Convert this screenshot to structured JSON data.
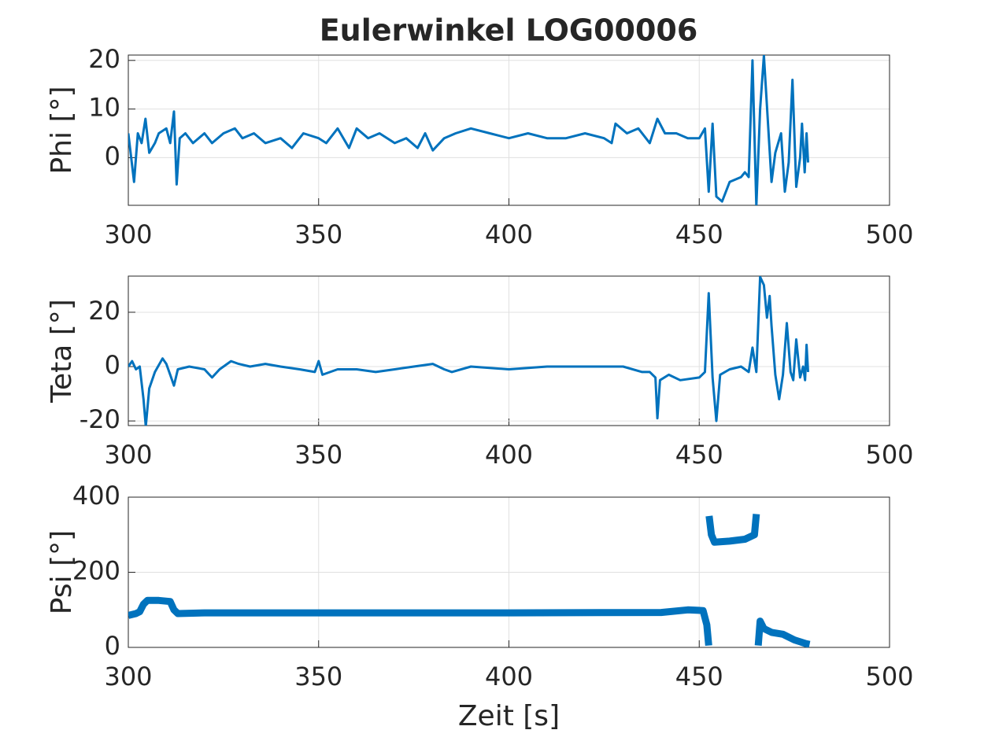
{
  "chart_data": [
    {
      "type": "line",
      "title": "Eulerwinkel LOG00006",
      "ylabel": "Phi [°]",
      "color": "#0072bd",
      "grid": true,
      "xlim": [
        300,
        500
      ],
      "xticks": [
        300,
        350,
        400,
        450,
        500
      ],
      "ylim": [
        -9.8,
        21.1
      ],
      "yticks": [
        0,
        10,
        20
      ],
      "x": [
        300,
        301.5,
        302.5,
        303.5,
        304.5,
        305.5,
        307,
        308,
        310,
        311,
        312,
        312.7,
        313.5,
        315,
        317,
        320,
        322,
        325,
        328,
        330,
        333,
        336,
        340,
        343,
        346,
        350,
        352,
        355,
        358,
        360,
        363,
        366,
        370,
        373,
        376,
        378,
        380,
        383,
        386,
        390,
        395,
        400,
        405,
        410,
        415,
        420,
        425,
        427,
        428,
        431,
        434,
        437,
        439,
        441,
        444,
        447,
        450,
        451.5,
        452.5,
        453.5,
        454.5,
        456,
        458,
        461,
        462,
        463,
        464,
        465,
        466,
        467,
        469,
        470,
        471.5,
        472.5,
        473.5,
        474.5,
        475.5,
        476.5,
        477,
        477.7,
        478.2,
        478.6
      ],
      "values": [
        5,
        -5,
        5,
        3,
        8,
        1,
        3,
        5,
        6,
        3,
        9.5,
        -5.5,
        4,
        5,
        3,
        5,
        3,
        5,
        6,
        4,
        5,
        3,
        4,
        2,
        5,
        4,
        3,
        6,
        2,
        6,
        4,
        5,
        3,
        4,
        2,
        5,
        1.5,
        4,
        5,
        6,
        5,
        4,
        5,
        4,
        4,
        5,
        4,
        3,
        7,
        5,
        6,
        3,
        8,
        5,
        5,
        4,
        4,
        6,
        -7,
        7,
        -8,
        -9,
        -5,
        -4,
        -3,
        -4,
        20,
        -10,
        10,
        21,
        -5,
        1,
        5,
        -7,
        -1,
        16,
        -6,
        0,
        7,
        -3,
        5,
        -1
      ]
    },
    {
      "type": "line",
      "ylabel": "Teta [°]",
      "color": "#0072bd",
      "grid": true,
      "xlim": [
        300,
        500
      ],
      "xticks": [
        300,
        350,
        400,
        450,
        500
      ],
      "ylim": [
        -21.7,
        33.3
      ],
      "yticks": [
        -20,
        0,
        20
      ],
      "x": [
        300,
        301,
        302,
        303,
        304,
        304.6,
        305.5,
        307,
        309,
        310,
        311,
        312,
        313,
        316,
        320,
        322,
        324,
        327,
        329,
        332,
        336,
        340,
        345,
        349,
        350,
        351,
        355,
        360,
        365,
        370,
        375,
        380,
        383,
        385,
        390,
        400,
        410,
        420,
        430,
        435,
        437,
        438.5,
        439,
        439.7,
        442,
        445,
        450,
        451.5,
        452.5,
        453.5,
        454.5,
        455.5,
        458,
        461,
        463,
        464,
        465,
        466,
        467,
        467.8,
        468.5,
        469,
        470,
        471,
        472,
        473,
        474,
        474.7,
        475.5,
        476.5,
        477.3,
        477.8,
        478.2,
        478.6
      ],
      "values": [
        0,
        2,
        -1,
        0,
        -12,
        -22,
        -8,
        -2,
        3,
        1,
        -3,
        -7,
        -1,
        0,
        -1,
        -4,
        -1,
        2,
        1,
        0,
        1,
        0,
        -1,
        -2,
        2,
        -3,
        -1,
        -1,
        -2,
        -1,
        0,
        1,
        -1,
        -2,
        0,
        -1,
        0,
        0,
        0,
        -2,
        -2,
        -4,
        -19,
        -5,
        -3,
        -5,
        -4,
        -2,
        27,
        -4,
        -20,
        -3,
        -1,
        0,
        -2,
        7,
        -2,
        33,
        30,
        18,
        26,
        15,
        -3,
        -12,
        -3,
        16,
        -2,
        -5,
        10,
        -4,
        0,
        -5,
        8,
        -2
      ]
    },
    {
      "type": "line",
      "ylabel": "Psi [°]",
      "xlabel": "Zeit [s]",
      "color": "#0072bd",
      "grid": true,
      "xlim": [
        300,
        500
      ],
      "xticks": [
        300,
        350,
        400,
        450,
        500
      ],
      "ylim": [
        0,
        400
      ],
      "yticks": [
        0,
        200,
        400
      ],
      "x": [
        300,
        302,
        303,
        304,
        305,
        308,
        311,
        312,
        313,
        320,
        350,
        400,
        440,
        447,
        451,
        452,
        452.5,
        452.55,
        452.6,
        453.2,
        454,
        458,
        462,
        464.5,
        465,
        465.2,
        465.5,
        466,
        467,
        469,
        472,
        475,
        478,
        479
      ],
      "values": [
        85,
        90,
        95,
        115,
        125,
        125,
        122,
        100,
        90,
        92,
        92,
        92,
        93,
        100,
        98,
        60,
        5,
        null,
        350,
        300,
        280,
        283,
        288,
        300,
        355,
        null,
        5,
        70,
        50,
        40,
        35,
        20,
        10,
        8
      ]
    }
  ]
}
